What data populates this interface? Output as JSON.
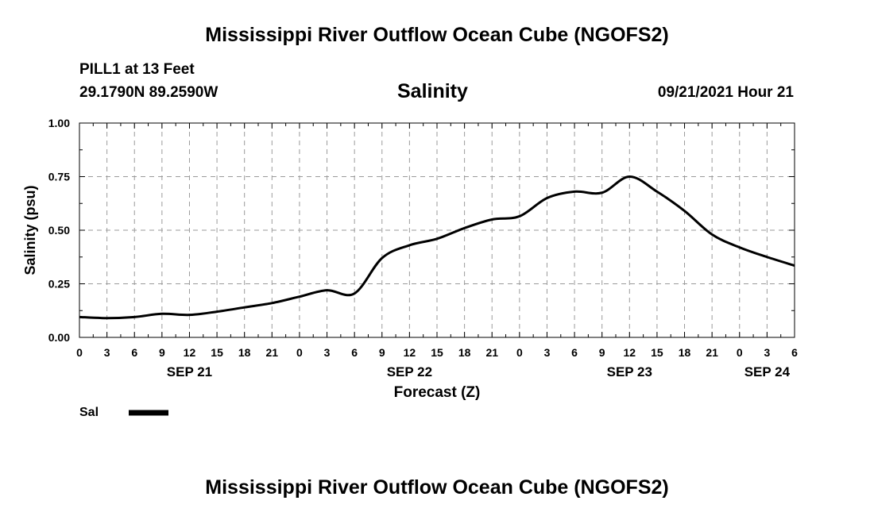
{
  "header": {
    "title": "Mississippi River Outflow Ocean Cube (NGOFS2)",
    "station": "PILL1 at 13 Feet",
    "location": "29.1790N  89.2590W",
    "variable": "Salinity",
    "datetime": "09/21/2021 Hour 21"
  },
  "footer": {
    "title": "Mississippi River Outflow Ocean Cube (NGOFS2)"
  },
  "chart_data": {
    "type": "line",
    "title": "Salinity",
    "xlabel": "Forecast (Z)",
    "ylabel": "Salinity (psu)",
    "xlim": [
      0,
      78
    ],
    "ylim": [
      0,
      1
    ],
    "x_unit": "hours from SEP 21 00Z",
    "x_tick_labels": [
      "0",
      "3",
      "6",
      "9",
      "12",
      "15",
      "18",
      "21",
      "0",
      "3",
      "6",
      "9",
      "12",
      "15",
      "18",
      "21",
      "0",
      "3",
      "6",
      "9",
      "12",
      "15",
      "18",
      "21",
      "0",
      "3",
      "6"
    ],
    "y_ticks": [
      "0.00",
      "0.25",
      "0.50",
      "0.75",
      "1.00"
    ],
    "date_labels": [
      {
        "label": "SEP 21",
        "hour": 12
      },
      {
        "label": "SEP 22",
        "hour": 36
      },
      {
        "label": "SEP 23",
        "hour": 60
      },
      {
        "label": "SEP 24",
        "hour": 75
      }
    ],
    "grid": true,
    "series": [
      {
        "name": "Sal",
        "x": [
          0,
          3,
          6,
          9,
          12,
          15,
          18,
          21,
          24,
          27,
          30,
          33,
          36,
          39,
          42,
          45,
          48,
          51,
          54,
          57,
          60,
          63,
          66,
          69,
          72,
          75,
          78
        ],
        "values": [
          0.095,
          0.09,
          0.095,
          0.11,
          0.105,
          0.12,
          0.14,
          0.16,
          0.19,
          0.22,
          0.205,
          0.37,
          0.43,
          0.46,
          0.51,
          0.55,
          0.565,
          0.65,
          0.68,
          0.675,
          0.75,
          0.68,
          0.59,
          0.48,
          0.42,
          0.375,
          0.335
        ]
      }
    ]
  }
}
